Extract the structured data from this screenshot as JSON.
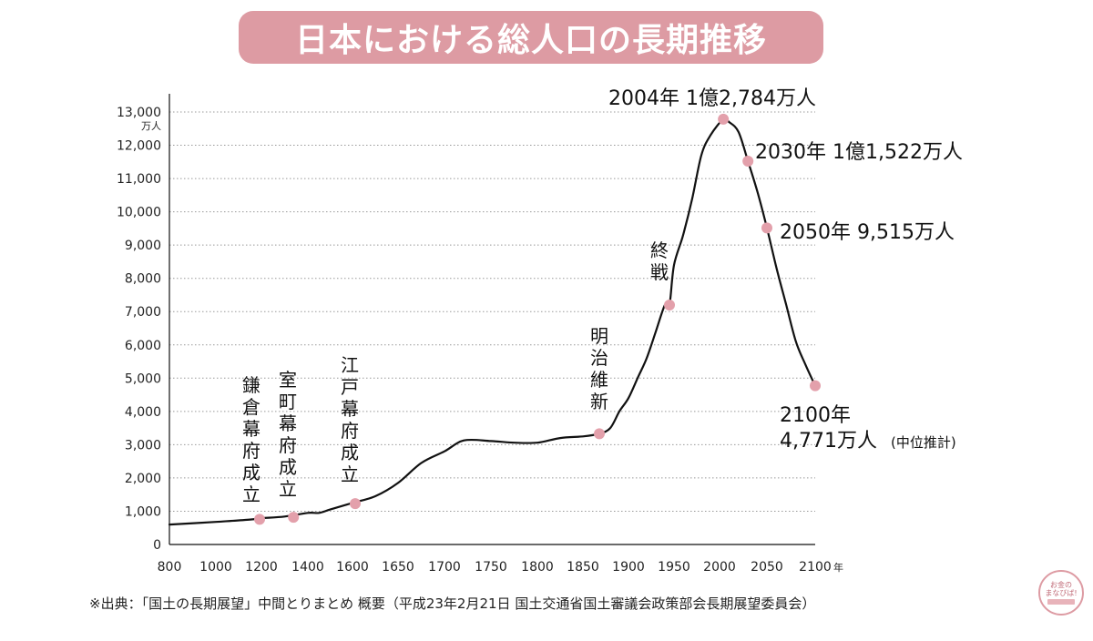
{
  "title": "日本における総人口の長期推移",
  "source": "※出典：「国土の長期展望」中間とりまとめ 概要（平成23年2月21日 国土交通省国土審議会政策部会長期展望委員会）",
  "logo": {
    "line1": "お金の",
    "line2": "まなびば!"
  },
  "colors": {
    "accent": "#dd9ba3",
    "marker": "#e3a0ab",
    "line": "#111111",
    "grid": "#999999"
  },
  "chart_data": {
    "type": "line",
    "title": "日本における総人口の長期推移",
    "y_unit": "万人",
    "x_unit": "年",
    "ylim": [
      0,
      13000
    ],
    "grid": true,
    "y_ticks": [
      {
        "value": 0,
        "label": "0"
      },
      {
        "value": 1000,
        "label": "1,000"
      },
      {
        "value": 2000,
        "label": "2,000"
      },
      {
        "value": 3000,
        "label": "3,000"
      },
      {
        "value": 4000,
        "label": "4,000"
      },
      {
        "value": 5000,
        "label": "5,000"
      },
      {
        "value": 6000,
        "label": "6,000"
      },
      {
        "value": 7000,
        "label": "7,000"
      },
      {
        "value": 8000,
        "label": "8,000"
      },
      {
        "value": 9000,
        "label": "9,000"
      },
      {
        "value": 10000,
        "label": "10,000"
      },
      {
        "value": 11000,
        "label": "11,000"
      },
      {
        "value": 12000,
        "label": "12,000"
      },
      {
        "value": 13000,
        "label": "13,000"
      }
    ],
    "x_ticks": [
      "800",
      "1000",
      "1200",
      "1400",
      "1600",
      "1650",
      "1700",
      "1750",
      "1800",
      "1850",
      "1900",
      "1950",
      "2000",
      "2050",
      "2100"
    ],
    "series": [
      {
        "points": [
          {
            "x": "800",
            "y": 600
          },
          {
            "x": "1000",
            "y": 680
          },
          {
            "x": "1150",
            "y": 750
          },
          {
            "x": "1200",
            "y": 790
          },
          {
            "x": "1300",
            "y": 840
          },
          {
            "x": "1400",
            "y": 950
          },
          {
            "x": "1450",
            "y": 950
          },
          {
            "x": "1500",
            "y": 1050
          },
          {
            "x": "1600",
            "y": 1250
          },
          {
            "x": "1625",
            "y": 1450
          },
          {
            "x": "1650",
            "y": 1850
          },
          {
            "x": "1675",
            "y": 2450
          },
          {
            "x": "1700",
            "y": 2800
          },
          {
            "x": "1721",
            "y": 3128
          },
          {
            "x": "1750",
            "y": 3110
          },
          {
            "x": "1775",
            "y": 3060
          },
          {
            "x": "1800",
            "y": 3060
          },
          {
            "x": "1825",
            "y": 3200
          },
          {
            "x": "1850",
            "y": 3250
          },
          {
            "x": "1868",
            "y": 3330
          },
          {
            "x": "1880",
            "y": 3500
          },
          {
            "x": "1890",
            "y": 4000
          },
          {
            "x": "1900",
            "y": 4400
          },
          {
            "x": "1910",
            "y": 5000
          },
          {
            "x": "1920",
            "y": 5600
          },
          {
            "x": "1930",
            "y": 6400
          },
          {
            "x": "1940",
            "y": 7200
          },
          {
            "x": "1945",
            "y": 7200
          },
          {
            "x": "1950",
            "y": 8400
          },
          {
            "x": "1960",
            "y": 9300
          },
          {
            "x": "1970",
            "y": 10400
          },
          {
            "x": "1980",
            "y": 11700
          },
          {
            "x": "1990",
            "y": 12300
          },
          {
            "x": "2004",
            "y": 12784
          },
          {
            "x": "2010",
            "y": 12700
          },
          {
            "x": "2020",
            "y": 12400
          },
          {
            "x": "2030",
            "y": 11522
          },
          {
            "x": "2040",
            "y": 10600
          },
          {
            "x": "2050",
            "y": 9515
          },
          {
            "x": "2060",
            "y": 8300
          },
          {
            "x": "2070",
            "y": 7200
          },
          {
            "x": "2080",
            "y": 6100
          },
          {
            "x": "2090",
            "y": 5400
          },
          {
            "x": "2100",
            "y": 4771
          }
        ]
      }
    ],
    "markers": [
      {
        "x": "1192",
        "y": 757,
        "label": "鎌倉幕府成立"
      },
      {
        "x": "1338",
        "y": 818,
        "label": "室町幕府成立"
      },
      {
        "x": "1603",
        "y": 1227,
        "label": "江戸幕府成立"
      },
      {
        "x": "1868",
        "y": 3330,
        "label": "明治維新"
      },
      {
        "x": "1945",
        "y": 7199,
        "label": "終戦"
      },
      {
        "x": "2004",
        "y": 12784,
        "label": "2004年 1億2,784万人"
      },
      {
        "x": "2030",
        "y": 11522,
        "label": "2030年 1億1,522万人"
      },
      {
        "x": "2050",
        "y": 9515,
        "label": "2050年 9,515万人"
      },
      {
        "x": "2100",
        "y": 4771,
        "label": "2100年",
        "label2": "4,771万人",
        "note": "(中位推計)"
      }
    ]
  }
}
